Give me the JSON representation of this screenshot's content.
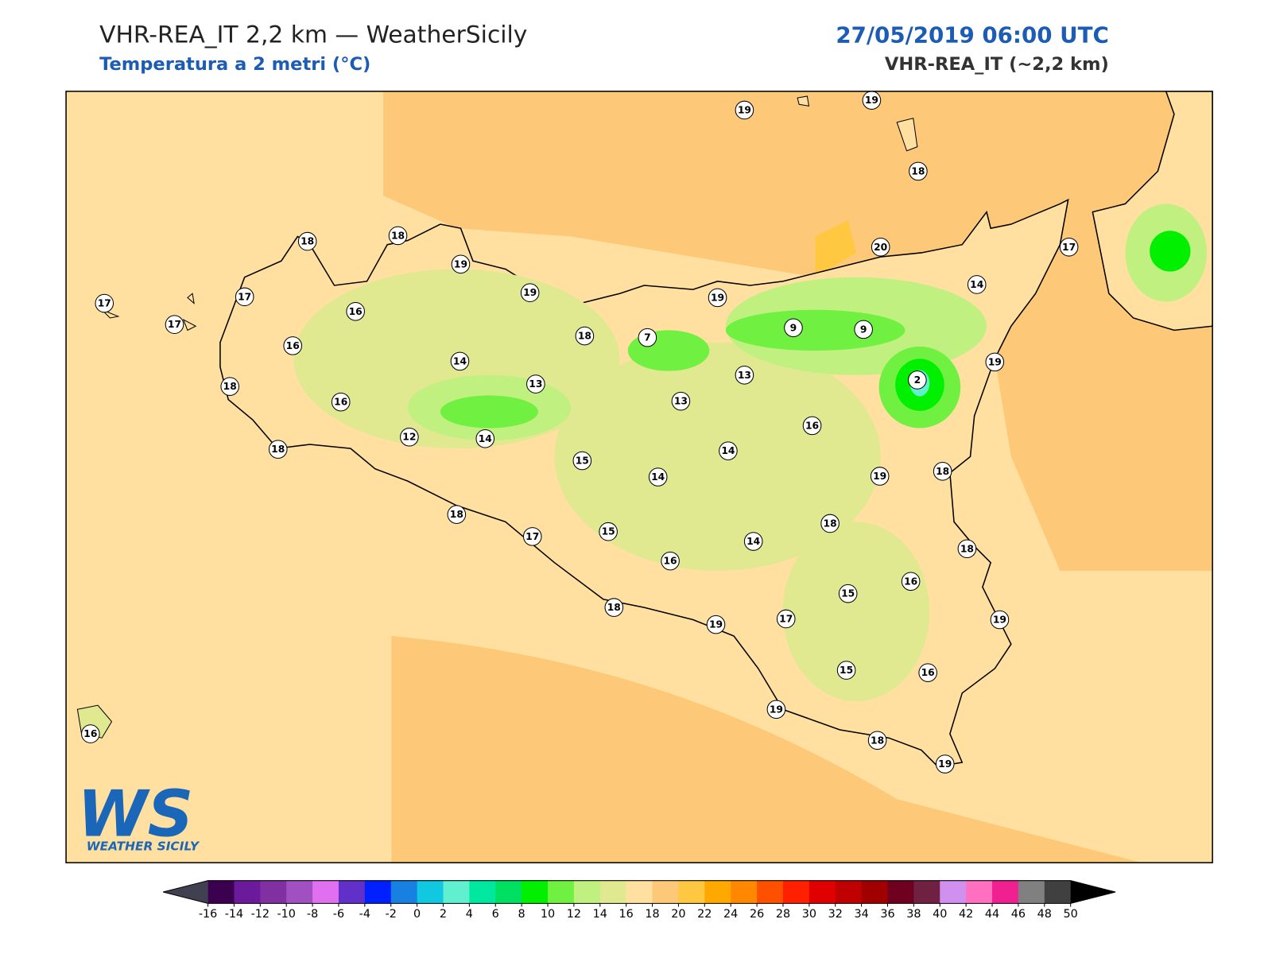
{
  "header": {
    "title": "VHR-REA_IT 2,2 km — WeatherSicily",
    "subtitle": "Temperatura a 2 metri (°C)",
    "date": "27/05/2019 06:00 UTC",
    "model": "VHR-REA_IT (~2,2 km)"
  },
  "stations": [
    19,
    19,
    18,
    18,
    18,
    19,
    19,
    17,
    17,
    17,
    16,
    16,
    18,
    16,
    18,
    14,
    12,
    14,
    13,
    18,
    7,
    19,
    9,
    9,
    20,
    17,
    14,
    19,
    2,
    13,
    13,
    15,
    14,
    14,
    16,
    19,
    18,
    18,
    14,
    18,
    17,
    15,
    16,
    18,
    16,
    15,
    17,
    19,
    18,
    19,
    15,
    16,
    19,
    18,
    19,
    16
  ],
  "colorbar": {
    "ticks": [
      -16,
      -14,
      -12,
      -10,
      -8,
      -6,
      -4,
      -2,
      0,
      2,
      4,
      6,
      8,
      10,
      12,
      14,
      16,
      18,
      20,
      22,
      24,
      26,
      28,
      30,
      32,
      34,
      36,
      38,
      40,
      42,
      44,
      46,
      48,
      50
    ],
    "colors": [
      "#3b0050",
      "#6a1a9a",
      "#8030a0",
      "#a050c0",
      "#e070f0",
      "#6030c8",
      "#0020ff",
      "#1880e0",
      "#10c8e0",
      "#60f0d0",
      "#00e8a0",
      "#00e060",
      "#00f000",
      "#70f040",
      "#c0f080",
      "#e0e890",
      "#ffe0a0",
      "#fdc878",
      "#ffc840",
      "#ffa800",
      "#ff8800",
      "#ff5000",
      "#ff2000",
      "#e00000",
      "#c00000",
      "#a00000",
      "#700020",
      "#702040",
      "#d090f0",
      "#ff70c0",
      "#f02090",
      "#808080",
      "#404040"
    ],
    "under_color": "#404050",
    "over_color": "#000000"
  },
  "logo": {
    "mark": "WS",
    "name": "WEATHER SICILY"
  }
}
